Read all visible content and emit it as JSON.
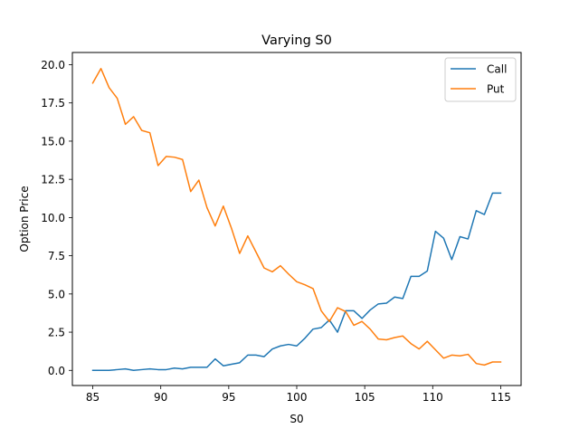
{
  "chart_data": {
    "type": "line",
    "title": "Varying S0",
    "xlabel": "S0",
    "ylabel": "Option Price",
    "xlim": [
      83.5,
      116.5
    ],
    "ylim": [
      -0.99,
      20.8
    ],
    "grid": false,
    "legend_position": "top-right",
    "xticks": [
      85,
      90,
      95,
      100,
      105,
      110,
      115
    ],
    "yticks": [
      0.0,
      2.5,
      5.0,
      7.5,
      10.0,
      12.5,
      15.0,
      17.5,
      20.0
    ],
    "xtick_labels": [
      "85",
      "90",
      "95",
      "100",
      "105",
      "110",
      "115"
    ],
    "ytick_labels": [
      "0.0",
      "2.5",
      "5.0",
      "7.5",
      "10.0",
      "12.5",
      "15.0",
      "17.5",
      "20.0"
    ],
    "x": [
      85.0,
      85.6,
      86.2,
      86.8,
      87.4,
      88.0,
      88.6,
      89.2,
      89.8,
      90.4,
      91.0,
      91.6,
      92.2,
      92.8,
      93.4,
      94.0,
      94.6,
      95.2,
      95.8,
      96.4,
      97.0,
      97.6,
      98.2,
      98.8,
      99.4,
      100.0,
      100.6,
      101.2,
      101.8,
      102.4,
      103.0,
      103.6,
      104.2,
      104.8,
      105.4,
      106.0,
      106.6,
      107.2,
      107.8,
      108.4,
      109.0,
      109.6,
      110.2,
      110.8,
      111.4,
      112.0,
      112.6,
      113.2,
      113.8,
      114.4,
      115.0
    ],
    "series": [
      {
        "name": "Call",
        "color": "#1f77b4",
        "values": [
          0.0,
          0.0,
          0.0,
          0.05,
          0.1,
          0.0,
          0.05,
          0.1,
          0.05,
          0.05,
          0.15,
          0.1,
          0.2,
          0.2,
          0.2,
          0.75,
          0.3,
          0.4,
          0.5,
          1.0,
          1.0,
          0.9,
          1.4,
          1.6,
          1.7,
          1.6,
          2.1,
          2.7,
          2.8,
          3.3,
          2.5,
          3.9,
          3.9,
          3.4,
          3.95,
          4.35,
          4.4,
          4.8,
          4.7,
          6.15,
          6.15,
          6.5,
          9.1,
          8.65,
          7.25,
          8.75,
          8.6,
          10.45,
          10.2,
          11.6,
          11.6
        ]
      },
      {
        "name": "Put",
        "color": "#ff7f0e",
        "values": [
          18.8,
          19.75,
          18.5,
          17.8,
          16.1,
          16.6,
          15.7,
          15.55,
          13.4,
          14.0,
          13.95,
          13.8,
          11.7,
          12.45,
          10.65,
          9.45,
          10.75,
          9.3,
          7.65,
          8.8,
          7.75,
          6.7,
          6.45,
          6.85,
          6.3,
          5.8,
          5.6,
          5.35,
          3.9,
          3.2,
          4.1,
          3.85,
          2.95,
          3.2,
          2.7,
          2.05,
          2.0,
          2.15,
          2.25,
          1.75,
          1.4,
          1.9,
          1.35,
          0.8,
          1.0,
          0.95,
          1.05,
          0.45,
          0.35,
          0.55,
          0.55
        ]
      }
    ]
  }
}
